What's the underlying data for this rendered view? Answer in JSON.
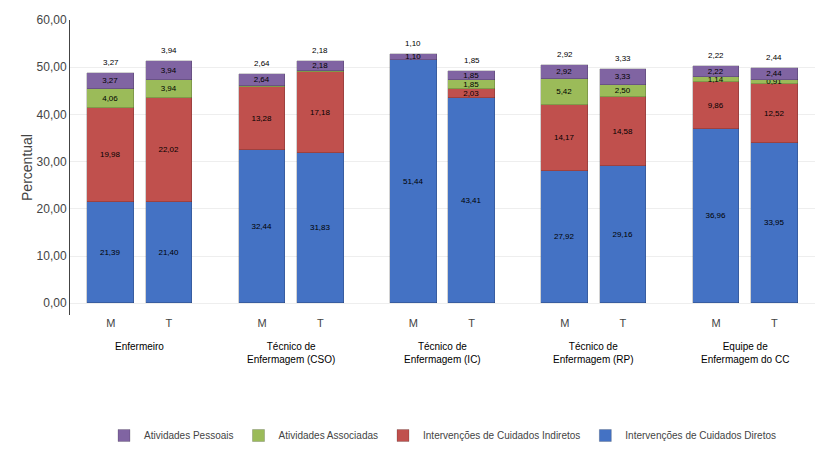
{
  "chart_data": {
    "type": "bar",
    "stacked": true,
    "categories": [
      "M",
      "T",
      "M",
      "T",
      "M",
      "T",
      "M",
      "T",
      "M",
      "T"
    ],
    "groups": [
      "Enfermeiro",
      "Técnico de\nEnfermagem (CSO)",
      "Técnico de\nEnfermagem (IC)",
      "Técnico de\nEnfermagem (RP)",
      "Equipe de\nEnfermagem do CC"
    ],
    "series": [
      {
        "name": "Intervenções de Cuidados Diretos",
        "color": "#4472C4",
        "values": [
          21.39,
          21.4,
          32.44,
          31.83,
          51.44,
          43.41,
          27.92,
          29.16,
          36.96,
          33.95
        ],
        "value_labels": [
          "21,39",
          "21,40",
          "32,44",
          "31,83",
          "51,44",
          "43,41",
          "27,92",
          "29,16",
          "36,96",
          "33,95"
        ]
      },
      {
        "name": "Intervenções de Cuidados Indiretos",
        "color": "#C0504D",
        "values": [
          19.98,
          22.02,
          13.28,
          17.18,
          0.17,
          2.03,
          14.17,
          14.58,
          9.86,
          12.52
        ],
        "value_labels": [
          "19,98",
          "22,02",
          "13,28",
          "17,18",
          null,
          "2,03",
          "14,17",
          "14,58",
          "9,86",
          "12,52"
        ]
      },
      {
        "name": "Atividades Associadas",
        "color": "#9BBB59",
        "values": [
          4.06,
          3.94,
          0.3,
          0.15,
          0.0,
          1.85,
          5.42,
          2.5,
          1.14,
          0.91
        ],
        "value_labels": [
          "4,06",
          "3,94",
          null,
          null,
          null,
          "1,85",
          "5,42",
          "2,50",
          "1,14",
          "0,91"
        ]
      },
      {
        "name": "Atividades Pessoais",
        "color": "#8064A2",
        "values": [
          3.27,
          3.94,
          2.64,
          2.18,
          1.1,
          1.85,
          2.92,
          3.33,
          2.22,
          2.44
        ],
        "value_labels": [
          "3,27",
          "3,94",
          "2,64",
          "2,18",
          "1,10",
          "1,85",
          "2,92",
          "3,33",
          "2,22",
          "2,44"
        ]
      }
    ],
    "annotations": [
      {
        "x": 0,
        "text": "3,27"
      },
      {
        "x": 1,
        "text": "3,94"
      },
      {
        "x": 2,
        "text": "2,64"
      },
      {
        "x": 3,
        "text": "2,18"
      },
      {
        "x": 4,
        "text": "1,10"
      },
      {
        "x": 5,
        "text": "1,85"
      },
      {
        "x": 6,
        "text": "2,92"
      },
      {
        "x": 7,
        "text": "3,33"
      },
      {
        "x": 8,
        "text": "2,22"
      },
      {
        "x": 9,
        "text": "2,44"
      }
    ],
    "ylabel": "Percentual",
    "ylim": [
      -2.5,
      60
    ],
    "yticks": [
      {
        "value": 0,
        "label": "0,00"
      },
      {
        "value": 10,
        "label": "10,00"
      },
      {
        "value": 20,
        "label": "20,00"
      },
      {
        "value": 30,
        "label": "30,00"
      },
      {
        "value": 40,
        "label": "40,00"
      },
      {
        "value": 50,
        "label": "50,00"
      },
      {
        "value": 60,
        "label": "60,00"
      }
    ],
    "grid": true,
    "data_labels": true,
    "legend": "bottom"
  }
}
